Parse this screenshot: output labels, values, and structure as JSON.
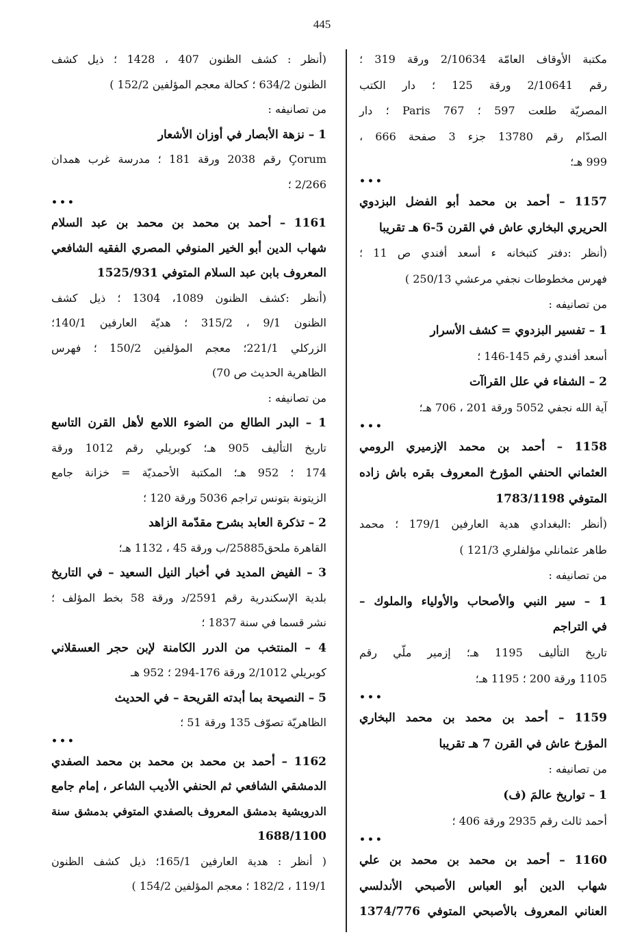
{
  "page_number": "445",
  "columns": {
    "right": [
      {
        "t": "مكتبة الأوقاف العامّة 2/10634 ورقة 319 ؛",
        "k": "j"
      },
      {
        "t": "رقم 2/10641 ورقة 125 ؛ دار الكتب",
        "k": "j"
      },
      {
        "t": "المصريّة طلعت 597 ؛ Paris 767 ؛ دار",
        "k": "j"
      },
      {
        "t": "الصدّام رقم 13780 جزء 3 صفحة 666 ،",
        "k": "j"
      },
      {
        "t": "999 هـ؛",
        "k": ""
      },
      {
        "t": "•••",
        "k": "dots"
      },
      {
        "t": "1157 – أحمد بن محمد أبو الفضل البزدوي",
        "k": "b j"
      },
      {
        "t": "الحريري البخاري عاش في القرن 5-6 هـ تقريبا",
        "k": "b"
      },
      {
        "t": "(أنظر :دفتر كتبخانه ء أسعد أفندي ص 11 ؛",
        "k": "j"
      },
      {
        "t": "فهرس مخطوطات نجفي مرعشي 250/13 )",
        "k": ""
      },
      {
        "t": "من تصانيفه :",
        "k": ""
      },
      {
        "t": "1 – تفسير البزدوي = كشف الأسرار",
        "k": "b"
      },
      {
        "t": "أسعد أفندي رقم 145-146 ؛",
        "k": ""
      },
      {
        "t": "2 – الشفاء في علل القراآت",
        "k": "b"
      },
      {
        "t": "آية الله نجفي 5052 ورقة 201 ، 706 هـ؛",
        "k": ""
      },
      {
        "t": "•••",
        "k": "dots"
      },
      {
        "t": "1158 – أحمد بن محمد الإزميري الرومي",
        "k": "b j"
      },
      {
        "t": "العثماني الحنفي المؤرخ المعروف بقره باش زاده",
        "k": "b j"
      },
      {
        "t": "المتوفي 1783/1198",
        "k": "b"
      },
      {
        "t": "(أنظر :البغدادي هدية العارفين 179/1 ؛ محمد",
        "k": "j"
      },
      {
        "t": "طاهر عثمانلي مؤلفلري 121/3 )",
        "k": ""
      },
      {
        "t": "من تصانيفه :",
        "k": ""
      },
      {
        "t": "1 – سير النبي والأصحاب والأولياء والملوك –",
        "k": "b j"
      },
      {
        "t": "في التراجم",
        "k": "b"
      },
      {
        "t": "تاريخ التأليف 1195 هـ؛ إزمير ملّي رقم",
        "k": "j"
      },
      {
        "t": "1105 ورقة 200 ؛ 1195 هـ؛",
        "k": ""
      },
      {
        "t": "•••",
        "k": "dots"
      },
      {
        "t": "1159 – أحمد بن محمد بن محمد البخاري",
        "k": "b j"
      },
      {
        "t": "المؤرخ عاش في القرن 7 هـ تقريبا",
        "k": "b"
      },
      {
        "t": "من تصانيفه :",
        "k": ""
      },
      {
        "t": "1 – تواريخ عالمَ (ف)",
        "k": "b"
      },
      {
        "t": "أحمد ثالث رقم 2935 ورقة 406 ؛",
        "k": ""
      },
      {
        "t": "•••",
        "k": "dots"
      },
      {
        "t": "1160 – أحمد بن محمد بن محمد بن علي",
        "k": "b j"
      },
      {
        "t": "شهاب الدين أبو العباس الأصبحي الأندلسي",
        "k": "b j"
      },
      {
        "t": "العناني المعروف بالأصبحي المتوفي 1374/776",
        "k": "b j"
      }
    ],
    "left": [
      {
        "t": "(أنظر : كشف الظنون 407 ، 1428 ؛ ذيل كشف",
        "k": "j"
      },
      {
        "t": "الظنون 634/2 ؛ كحالة معجم المؤلفين 152/2 )",
        "k": ""
      },
      {
        "t": "من تصانيفه :",
        "k": ""
      },
      {
        "t": "1 – نزهة الأبصار في أوزان الأشعار",
        "k": "b"
      },
      {
        "t": "Çorum رقم 2038 ورقة 181 ؛ مدرسة غرب همدان",
        "k": "j"
      },
      {
        "t": "2/266 ؛",
        "k": ""
      },
      {
        "t": "•••",
        "k": "dots"
      },
      {
        "t": "1161 – أحمد بن محمد بن محمد بن عبد السلام",
        "k": "b j"
      },
      {
        "t": "شهاب الدين أبو الخير المنوفي المصري الفقيه الشافعي",
        "k": "b j"
      },
      {
        "t": "المعروف بابن عبد السلام المتوفي 1525/931",
        "k": "b"
      },
      {
        "t": "(أنظر :كشف الظنون 1089، 1304 ؛ ذيل كشف",
        "k": "j"
      },
      {
        "t": "الظنون 9/1 ، 315/2 ؛ هديّة العارفين 140/1؛",
        "k": "j"
      },
      {
        "t": "الزركلي 221/1؛ معجم المؤلفين 150/2 ؛ فهرس",
        "k": "j"
      },
      {
        "t": "الظاهرية الحديث ص 70)",
        "k": ""
      },
      {
        "t": "من تصانيفه :",
        "k": ""
      },
      {
        "t": "1 – البدر الطالع من الضوء اللامع لأهل القرن التاسع",
        "k": "b j"
      },
      {
        "t": "تاريخ التأليف 905 هـ؛ كوبريلي رقم 1012 ورقة",
        "k": "j"
      },
      {
        "t": "174 ؛ 952 هـ؛ المكتبة الأحمديّة = خزانة جامع",
        "k": "j"
      },
      {
        "t": "الزيتونة بتونس تراجم 5036 ورقة 120 ؛",
        "k": ""
      },
      {
        "t": "2 – تذكرة العابد بشرح مقدّمة الزاهد",
        "k": "b"
      },
      {
        "t": "القاهرة ملحق25885/ب ورقة 45 ، 1132 هـ؛",
        "k": ""
      },
      {
        "t": "3 – الفيض المديد في أخبار النيل السعيد – في التاريخ",
        "k": "b j"
      },
      {
        "t": "بلدية الإسكندرية رقم 2591/د ورقة 58 بخط المؤلف ؛",
        "k": "j"
      },
      {
        "t": "نشر قسما في سنة 1837 ؛",
        "k": ""
      },
      {
        "t": "4 – المنتخب من الدرر الكامنة لإبن حجر العسقلاني",
        "k": "b j"
      },
      {
        "t": "كوبريلي 2/1012 ورقة 176-294 ؛ 952 هـ",
        "k": ""
      },
      {
        "t": "5 – النصيحة بما أبدته القريحة – في الحديث",
        "k": "b"
      },
      {
        "t": "الظاهريّة تصوّف 135 ورقة 51 ؛",
        "k": ""
      },
      {
        "t": "•••",
        "k": "dots"
      },
      {
        "t": "1162 – أحمد بن محمد بن محمد بن محمد الصفدي",
        "k": "b j"
      },
      {
        "t": "الدمشقي الشافعي ثم الحنفي الأديب الشاعر ، إمام جامع",
        "k": "b j"
      },
      {
        "t": "الدرويشية بدمشق المعروف بالصفدي المتوفي بدمشق سنة",
        "k": "b j"
      },
      {
        "t": "1688/1100",
        "k": "b"
      },
      {
        "t": "( أنظر : هدية العارفين 165/1؛ ذيل كشف الظنون",
        "k": "j"
      },
      {
        "t": "119/1 ، 182/2 ؛ معجم المؤلفين 154/2 )",
        "k": ""
      }
    ]
  }
}
